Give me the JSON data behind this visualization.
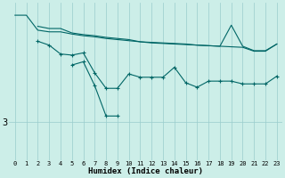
{
  "xlabel": "Humidex (Indice chaleur)",
  "bg_color": "#cceee8",
  "line_color": "#006666",
  "grid_color": "#99cccc",
  "x": [
    0,
    1,
    2,
    3,
    4,
    5,
    6,
    7,
    8,
    9,
    10,
    11,
    12,
    13,
    14,
    15,
    16,
    17,
    18,
    19,
    20,
    21,
    22,
    23
  ],
  "line1": [
    4.92,
    4.92,
    4.65,
    4.62,
    4.62,
    4.58,
    4.55,
    4.53,
    4.5,
    4.48,
    4.46,
    4.44,
    4.42,
    4.41,
    4.4,
    4.39,
    4.38,
    4.37,
    4.36,
    4.74,
    4.36,
    4.28,
    4.28,
    4.4
  ],
  "line2_x": [
    2,
    3,
    4,
    5,
    6,
    7,
    8,
    9,
    10,
    11,
    12,
    13,
    14,
    15,
    16,
    17,
    18,
    19,
    20,
    21,
    22,
    23
  ],
  "line2_y": [
    4.72,
    4.68,
    4.68,
    4.6,
    4.57,
    4.55,
    4.52,
    4.5,
    4.48,
    4.44,
    4.43,
    4.42,
    4.41,
    4.4,
    4.38,
    4.37,
    4.36,
    4.35,
    4.34,
    4.27,
    4.27,
    4.4
  ],
  "line3_x": [
    2,
    3,
    4,
    5,
    6,
    7,
    8,
    9,
    10,
    11,
    12,
    13,
    14,
    15,
    16,
    17,
    18,
    19,
    20,
    21,
    22,
    23
  ],
  "line3_y": [
    4.45,
    4.38,
    4.22,
    4.2,
    4.24,
    3.88,
    3.6,
    3.6,
    3.86,
    3.8,
    3.8,
    3.8,
    3.98,
    3.7,
    3.62,
    3.73,
    3.73,
    3.73,
    3.68,
    3.68,
    3.68,
    3.82
  ],
  "line4_x": [
    5,
    6,
    7,
    8,
    9
  ],
  "line4_y": [
    4.02,
    4.08,
    3.65,
    3.1,
    3.1
  ],
  "ytick_val": 3.0,
  "ytick_label": "3",
  "ylim": [
    2.3,
    5.15
  ],
  "xlim": [
    -0.5,
    23.5
  ],
  "xtick_fontsize": 5.0,
  "ytick_fontsize": 7.5,
  "xlabel_fontsize": 6.5
}
